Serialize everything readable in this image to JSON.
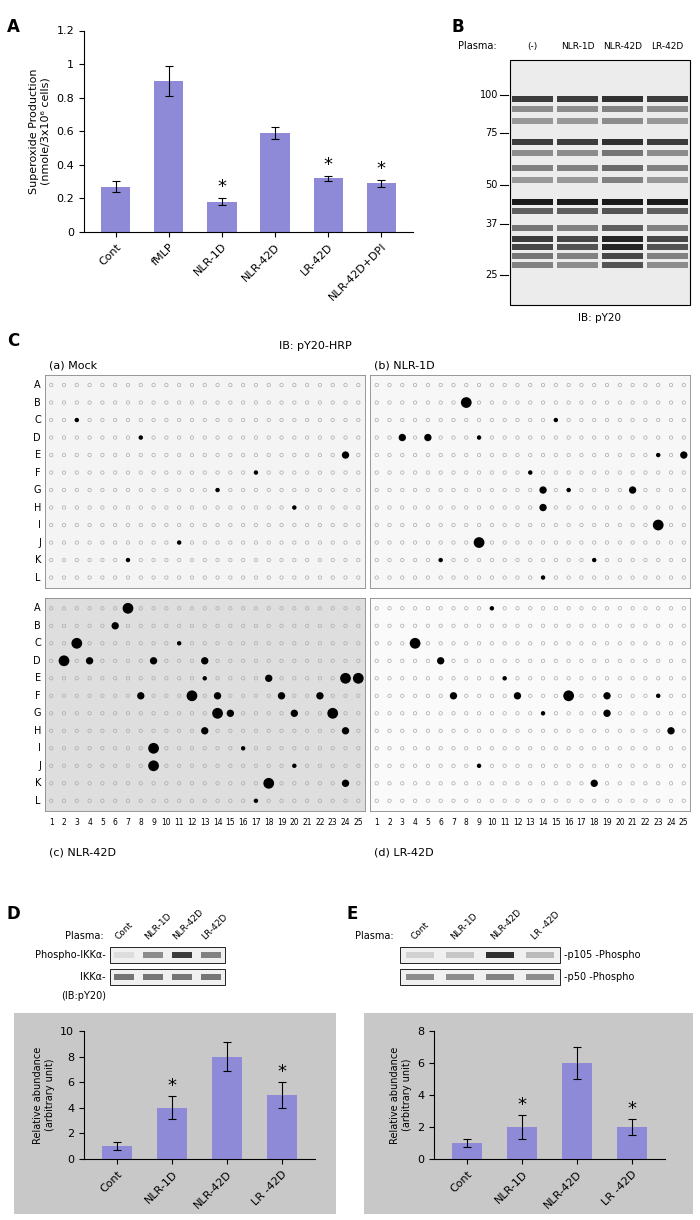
{
  "panel_labels": [
    "A",
    "B",
    "C",
    "D",
    "E"
  ],
  "chart_data": [
    {
      "type": "bar",
      "categories": [
        "Cont",
        "fMLP",
        "NLR-1D",
        "NLR-42D",
        "LR-42D",
        "NLR-42D+DPI"
      ],
      "values": [
        0.27,
        0.9,
        0.18,
        0.59,
        0.32,
        0.29
      ],
      "errors": [
        0.03,
        0.09,
        0.02,
        0.035,
        0.015,
        0.02
      ],
      "color": "#8e8ad8",
      "ylabel": "Superoxide Production\n(nmole/3x10⁶ cells)",
      "ylim": [
        0,
        1.2
      ],
      "yticks": [
        0,
        0.2,
        0.4,
        0.6,
        0.8,
        1,
        1.2
      ],
      "annotations": [
        {
          "category": "NLR-1D",
          "text": "*"
        },
        {
          "category": "LR-42D",
          "text": "*"
        },
        {
          "category": "NLR-42D+DPI",
          "text": "*"
        }
      ]
    },
    {
      "type": "bar",
      "categories": [
        "Cont",
        "NLR-1D",
        "NLR-42D",
        "LR -42D"
      ],
      "values": [
        1,
        4,
        8,
        5
      ],
      "errors": [
        0.3,
        0.9,
        1.1,
        1.0
      ],
      "color": "#8e8ad8",
      "ylabel": "Relative abundance\n(arbitrary unit)",
      "ylim": [
        0,
        10
      ],
      "yticks": [
        0,
        2,
        4,
        6,
        8,
        10
      ],
      "annotations": [
        {
          "category": "NLR-1D",
          "text": "*"
        },
        {
          "category": "LR -42D",
          "text": "*"
        }
      ]
    },
    {
      "type": "bar",
      "categories": [
        "Cont",
        "NLR-1D",
        "NLR-42D",
        "LR -42D"
      ],
      "values": [
        1,
        2,
        6,
        2
      ],
      "errors": [
        0.25,
        0.75,
        1.0,
        0.5
      ],
      "color": "#8e8ad8",
      "ylabel": "Relative abundance\n(arbitrary unit)",
      "ylim": [
        0,
        8
      ],
      "yticks": [
        0,
        2,
        4,
        6,
        8
      ],
      "annotations": [
        {
          "category": "NLR-1D",
          "text": "*"
        },
        {
          "category": "LR -42D",
          "text": "*"
        }
      ]
    }
  ],
  "blot_B": {
    "plasma_label": "Plasma:",
    "lanes": [
      "(-)",
      "NLR-1D",
      "NLR-42D",
      "LR-42D"
    ],
    "markers": [
      100,
      75,
      50,
      37,
      25
    ],
    "note": "IB: pY20",
    "bands": [
      {
        "kDa": 97,
        "intensity": [
          0.85,
          0.85,
          0.9,
          0.85
        ]
      },
      {
        "kDa": 90,
        "intensity": [
          0.5,
          0.5,
          0.55,
          0.5
        ]
      },
      {
        "kDa": 82,
        "intensity": [
          0.45,
          0.45,
          0.5,
          0.45
        ]
      },
      {
        "kDa": 70,
        "intensity": [
          0.85,
          0.85,
          0.9,
          0.85
        ]
      },
      {
        "kDa": 64,
        "intensity": [
          0.5,
          0.5,
          0.6,
          0.5
        ]
      },
      {
        "kDa": 57,
        "intensity": [
          0.55,
          0.55,
          0.65,
          0.55
        ]
      },
      {
        "kDa": 52,
        "intensity": [
          0.45,
          0.45,
          0.55,
          0.45
        ]
      },
      {
        "kDa": 44,
        "intensity": [
          1,
          1,
          1,
          1
        ]
      },
      {
        "kDa": 41,
        "intensity": [
          0.7,
          0.7,
          0.75,
          0.7
        ]
      },
      {
        "kDa": 36,
        "intensity": [
          0.6,
          0.55,
          0.7,
          0.55
        ]
      },
      {
        "kDa": 33,
        "intensity": [
          0.85,
          0.8,
          0.95,
          0.8
        ]
      },
      {
        "kDa": 31,
        "intensity": [
          0.8,
          0.75,
          0.95,
          0.75
        ]
      },
      {
        "kDa": 29,
        "intensity": [
          0.6,
          0.55,
          0.8,
          0.55
        ]
      },
      {
        "kDa": 27,
        "intensity": [
          0.55,
          0.5,
          0.75,
          0.5
        ]
      }
    ]
  },
  "array_C": {
    "title": "IB: pY20-HRP",
    "rows": [
      "A",
      "B",
      "C",
      "D",
      "E",
      "F",
      "G",
      "H",
      "I",
      "J",
      "K",
      "L"
    ],
    "columns": [
      1,
      2,
      3,
      4,
      5,
      6,
      7,
      8,
      9,
      10,
      11,
      12,
      13,
      14,
      15,
      16,
      17,
      18,
      19,
      20,
      21,
      22,
      23,
      24,
      25
    ],
    "panels": [
      {
        "label": "(a) Mock",
        "spots": [
          [
            "C",
            3,
            1
          ],
          [
            "D",
            8,
            1
          ],
          [
            "E",
            24,
            2
          ],
          [
            "F",
            17,
            1
          ],
          [
            "G",
            14,
            1
          ],
          [
            "H",
            20,
            1
          ],
          [
            "J",
            11,
            1
          ],
          [
            "K",
            7,
            1
          ]
        ]
      },
      {
        "label": "(b) NLR-1D",
        "spots": [
          [
            "B",
            8,
            3
          ],
          [
            "C",
            15,
            1
          ],
          [
            "D",
            3,
            2
          ],
          [
            "D",
            5,
            2
          ],
          [
            "D",
            9,
            1
          ],
          [
            "E",
            23,
            1
          ],
          [
            "E",
            25,
            2
          ],
          [
            "F",
            13,
            1
          ],
          [
            "G",
            14,
            2
          ],
          [
            "G",
            16,
            1
          ],
          [
            "G",
            21,
            2
          ],
          [
            "H",
            14,
            2
          ],
          [
            "I",
            23,
            3
          ],
          [
            "J",
            9,
            3
          ],
          [
            "K",
            6,
            1
          ],
          [
            "K",
            18,
            1
          ],
          [
            "L",
            14,
            1
          ]
        ]
      },
      {
        "label": "(c) NLR-42D",
        "spots": [
          [
            "A",
            7,
            3
          ],
          [
            "B",
            6,
            2
          ],
          [
            "C",
            3,
            3
          ],
          [
            "C",
            11,
            1
          ],
          [
            "D",
            2,
            3
          ],
          [
            "D",
            4,
            2
          ],
          [
            "D",
            9,
            2
          ],
          [
            "D",
            13,
            2
          ],
          [
            "E",
            13,
            1
          ],
          [
            "E",
            18,
            2
          ],
          [
            "E",
            24,
            3
          ],
          [
            "E",
            25,
            3
          ],
          [
            "F",
            8,
            2
          ],
          [
            "F",
            12,
            3
          ],
          [
            "F",
            14,
            2
          ],
          [
            "F",
            19,
            2
          ],
          [
            "F",
            22,
            2
          ],
          [
            "G",
            14,
            3
          ],
          [
            "G",
            15,
            2
          ],
          [
            "G",
            20,
            2
          ],
          [
            "G",
            23,
            3
          ],
          [
            "H",
            13,
            2
          ],
          [
            "H",
            24,
            2
          ],
          [
            "I",
            9,
            3
          ],
          [
            "I",
            16,
            1
          ],
          [
            "J",
            9,
            3
          ],
          [
            "J",
            20,
            1
          ],
          [
            "K",
            18,
            3
          ],
          [
            "K",
            24,
            2
          ],
          [
            "L",
            17,
            1
          ]
        ]
      },
      {
        "label": "(d) LR-42D",
        "spots": [
          [
            "A",
            10,
            1
          ],
          [
            "C",
            4,
            3
          ],
          [
            "D",
            6,
            2
          ],
          [
            "E",
            11,
            1
          ],
          [
            "F",
            7,
            2
          ],
          [
            "F",
            12,
            2
          ],
          [
            "F",
            16,
            3
          ],
          [
            "F",
            19,
            2
          ],
          [
            "F",
            23,
            1
          ],
          [
            "G",
            14,
            1
          ],
          [
            "G",
            19,
            2
          ],
          [
            "H",
            24,
            2
          ],
          [
            "J",
            9,
            1
          ],
          [
            "K",
            18,
            2
          ]
        ]
      }
    ]
  },
  "blot_D": {
    "plasma_label": "Plasma:",
    "lanes": [
      "Cont",
      "NLR-1D",
      "NLR-42D",
      "LR-42D"
    ],
    "rows": [
      {
        "label": "Phospho-IKKα-",
        "intensity": [
          0.15,
          0.5,
          0.85,
          0.55
        ]
      },
      {
        "label": "IKKα-",
        "intensity": [
          0.6,
          0.6,
          0.6,
          0.6
        ]
      }
    ],
    "note": "(IB:pY20)"
  },
  "blot_E": {
    "plasma_label": "Plasma:",
    "lanes": [
      "Cont",
      "NLR-1D",
      "NLR-42D",
      "LR -42D"
    ],
    "rows": [
      {
        "label": "-p105 -Phospho",
        "intensity": [
          0.2,
          0.25,
          0.9,
          0.3
        ]
      },
      {
        "label": "-p50 -Phospho",
        "intensity": [
          0.5,
          0.5,
          0.55,
          0.5
        ]
      }
    ]
  }
}
